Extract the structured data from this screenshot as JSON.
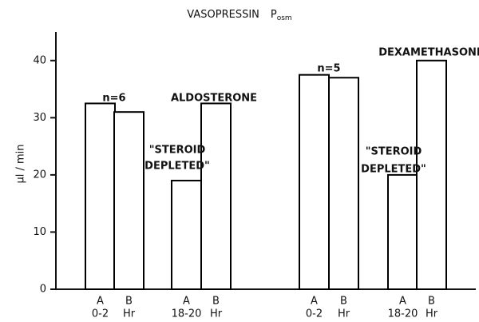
{
  "chart_data": {
    "type": "bar",
    "title": "VASOPRESSIN",
    "title_variable": "P",
    "title_subscript": "osm",
    "ylabel": "μl / min",
    "categories": [
      "A",
      "B",
      "A",
      "B",
      "A",
      "B",
      "A",
      "B"
    ],
    "sublabels": [
      "0-2",
      "Hr",
      "18-20",
      "Hr",
      "0-2",
      "Hr",
      "18-20",
      "Hr"
    ],
    "values": [
      32.5,
      31,
      19,
      32.5,
      37.5,
      37,
      20,
      40
    ],
    "color": "#ffffff",
    "edge_color": "#000000",
    "ylim": [
      0,
      45
    ],
    "yticks": [
      0,
      10,
      20,
      30,
      40
    ],
    "grid": false,
    "annotations": [
      "n=6",
      "ALDOSTERONE",
      "\"STEROID",
      "DEPLETED\"",
      "n=5",
      "DEXAMETHASONE",
      "\"STEROID",
      "DEPLETED\""
    ]
  }
}
